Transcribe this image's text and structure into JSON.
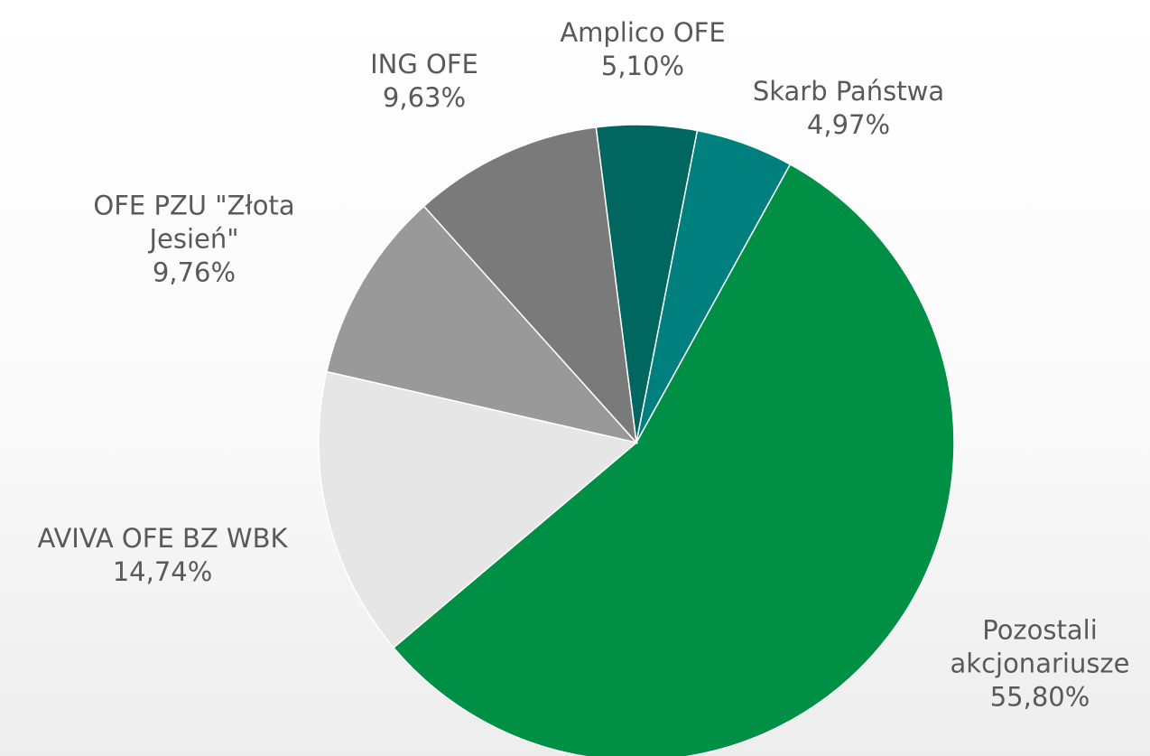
{
  "chart_data": {
    "type": "pie",
    "categories": [
      "Amplico OFE",
      "Skarb Państwa",
      "Pozostali akcjonariusze",
      "AVIVA OFE BZ WBK",
      "OFE PZU \"Złota Jesień\"",
      "ING OFE"
    ],
    "values": [
      5.1,
      4.97,
      55.8,
      14.74,
      9.76,
      9.63
    ],
    "value_labels": [
      "5,10%",
      "4,97%",
      "55,80%",
      "14,74%",
      "9,76%",
      "9,63%"
    ],
    "colors": [
      "#006660",
      "#007f7f",
      "#009045",
      "#e6e6e6",
      "#999999",
      "#7a7a7a"
    ]
  }
}
